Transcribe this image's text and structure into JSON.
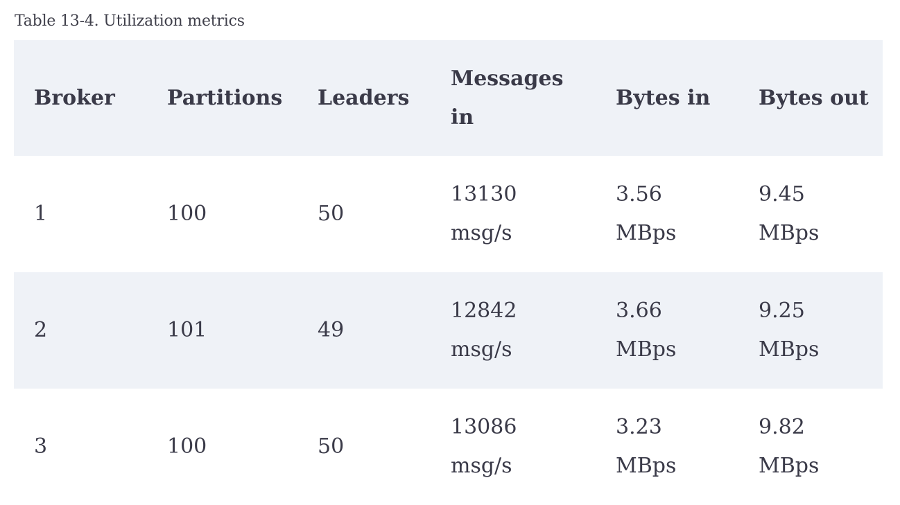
{
  "caption": "Table 13-4. Utilization metrics",
  "columns": {
    "broker": "Broker",
    "partitions": "Partitions",
    "leaders": "Leaders",
    "messages_in_line1": "Messages",
    "messages_in_line2": "in",
    "bytes_in": "Bytes in",
    "bytes_out": "Bytes out"
  },
  "rows": [
    {
      "broker": "1",
      "partitions": "100",
      "leaders": "50",
      "messages_in_value": "13130",
      "messages_in_unit": "msg/s",
      "bytes_in_value": "3.56",
      "bytes_in_unit": "MBps",
      "bytes_out_value": "9.45",
      "bytes_out_unit": "MBps"
    },
    {
      "broker": "2",
      "partitions": "101",
      "leaders": "49",
      "messages_in_value": "12842",
      "messages_in_unit": "msg/s",
      "bytes_in_value": "3.66",
      "bytes_in_unit": "MBps",
      "bytes_out_value": "9.25",
      "bytes_out_unit": "MBps"
    },
    {
      "broker": "3",
      "partitions": "100",
      "leaders": "50",
      "messages_in_value": "13086",
      "messages_in_unit": "msg/s",
      "bytes_in_value": "3.23",
      "bytes_in_unit": "MBps",
      "bytes_out_value": "9.82",
      "bytes_out_unit": "MBps"
    }
  ],
  "colors": {
    "header_bg": "#eff2f7",
    "stripe_bg": "#eff2f7",
    "text": "#3a3a48"
  }
}
